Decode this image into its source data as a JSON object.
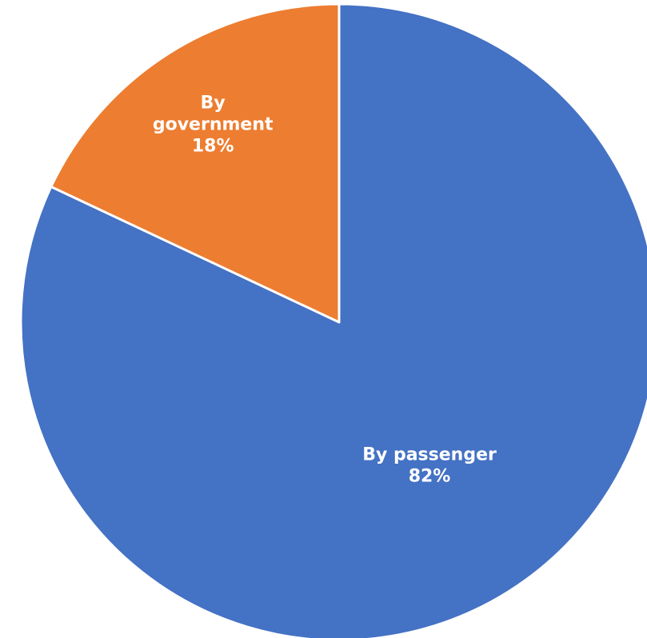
{
  "chart_data": {
    "type": "pie",
    "title": "",
    "slices": [
      {
        "name": "By passenger",
        "value": 82,
        "label_lines": [
          "By passenger",
          "82%"
        ],
        "color": "#4472C4"
      },
      {
        "name": "By government",
        "value": 18,
        "label_lines": [
          "By",
          "government",
          "18%"
        ],
        "color": "#ED7D31"
      }
    ],
    "start_angle_deg": 0,
    "direction": "clockwise",
    "legend": "none"
  }
}
